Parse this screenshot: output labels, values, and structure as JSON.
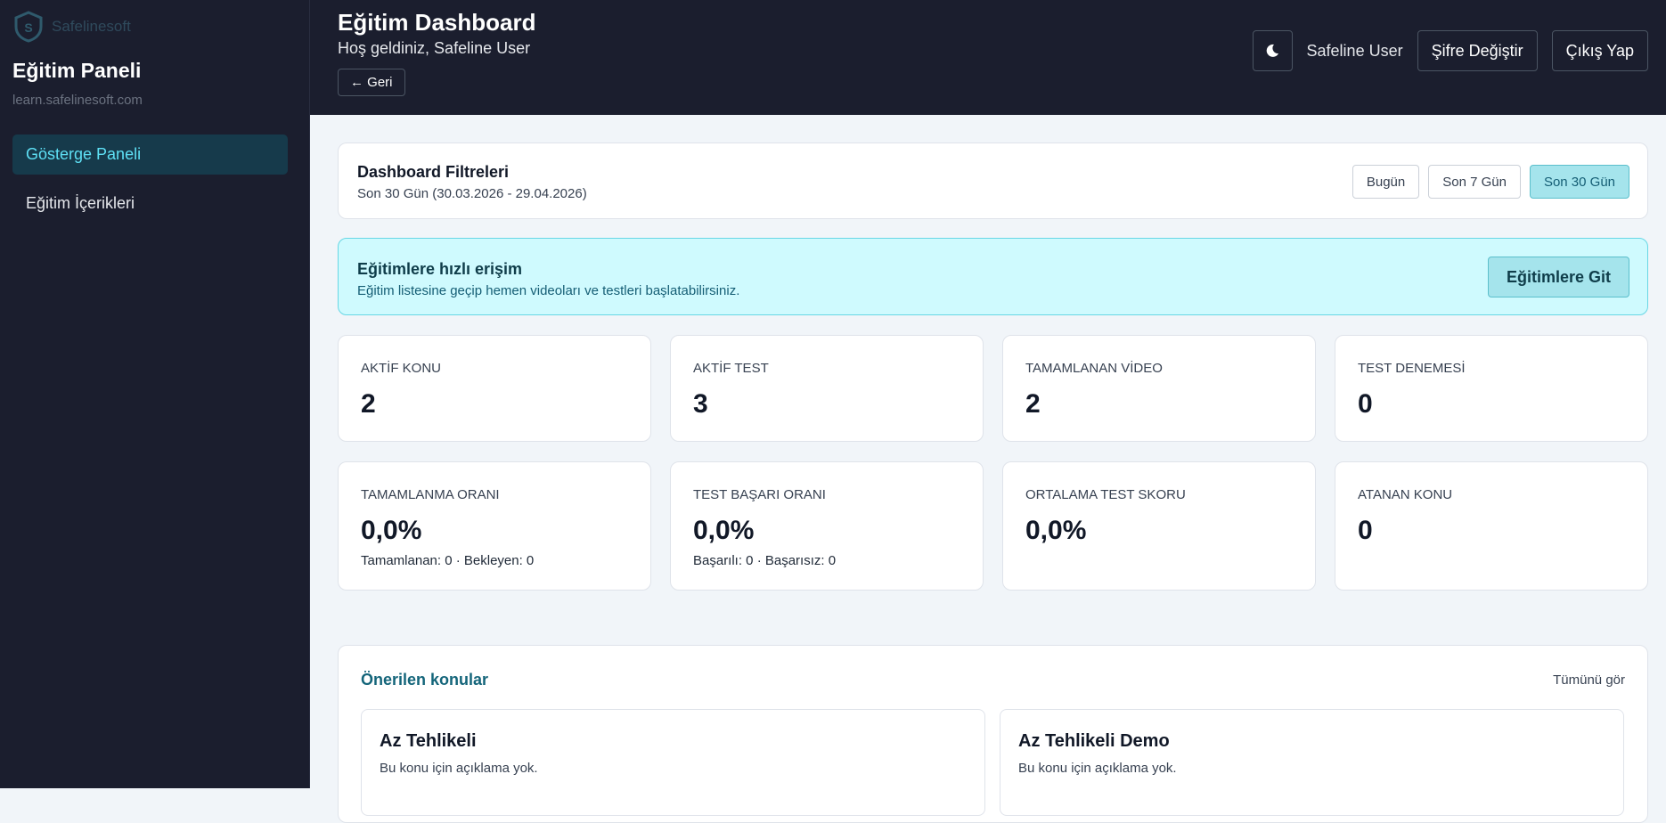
{
  "sidebar": {
    "logo": "Safelinesoft",
    "title": "Eğitim Paneli",
    "subtitle": "learn.safelinesoft.com",
    "nav": [
      "Gösterge Paneli",
      "Eğitim İçerikleri"
    ],
    "active": 0
  },
  "header": {
    "title": "Eğitim Dashboard",
    "welcome": "Hoş geldiniz, Safeline User",
    "back": "← Geri",
    "user": "Safeline User",
    "buttons": [
      "Şifre Değiştir",
      "Çıkış Yap"
    ]
  },
  "filters": {
    "title": "Dashboard Filtreleri",
    "range": "Son 30 Gün (30.03.2026 - 29.04.2026)",
    "buttons": [
      "Bugün",
      "Son 7 Gün",
      "Son 30 Gün"
    ],
    "active": 2
  },
  "quick": {
    "title": "Eğitimlere hızlı erişim",
    "text": "Eğitim listesine geçip hemen videoları ve testleri başlatabilirsiniz.",
    "button": "Eğitimlere Git"
  },
  "stats": [
    {
      "label": "AKTİF KONU",
      "value": "2"
    },
    {
      "label": "AKTİF TEST",
      "value": "3"
    },
    {
      "label": "TAMAMLANAN VİDEO",
      "value": "2"
    },
    {
      "label": "TEST DENEMESİ",
      "value": "0"
    },
    {
      "label": "TAMAMLANMA ORANI",
      "value": "0,0%",
      "note": "Tamamlanan: 0 · Bekleyen: 0"
    },
    {
      "label": "TEST BAŞARI ORANI",
      "value": "0,0%",
      "note": "Başarılı: 0 · Başarısız: 0"
    },
    {
      "label": "ORTALAMA TEST SKORU",
      "value": "0,0%"
    },
    {
      "label": "ATANAN KONU",
      "value": "0"
    }
  ],
  "recommended": {
    "title": "Önerilen konular",
    "link": "Tümünü gör",
    "cards": [
      {
        "title": "Az Tehlikeli",
        "desc": "Bu konu için açıklama yok."
      },
      {
        "title": "Az Tehlikeli Demo",
        "desc": "Bu konu için açıklama yok."
      }
    ]
  }
}
